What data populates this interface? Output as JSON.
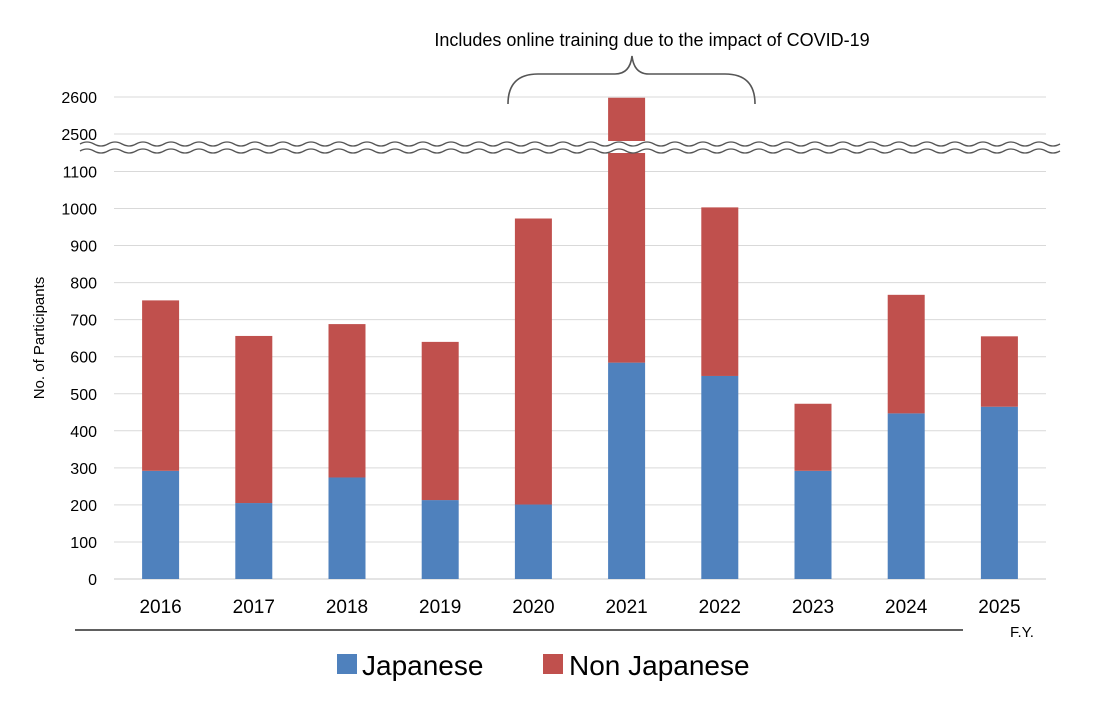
{
  "chart_data": {
    "type": "bar",
    "stacked": true,
    "title": "",
    "annotation": "Includes online training due to the impact of COVID-19",
    "xlabel": "F.Y.",
    "ylabel": "No. of Participants",
    "categories": [
      "2016",
      "2017",
      "2018",
      "2019",
      "2020",
      "2021",
      "2022",
      "2023",
      "2024",
      "2025"
    ],
    "series": [
      {
        "name": "Japanese",
        "values": [
          292,
          205,
          274,
          213,
          201,
          584,
          548,
          292,
          447,
          465
        ],
        "color": "#4F81BD"
      },
      {
        "name": "Non Japanese",
        "values": [
          460,
          451,
          414,
          427,
          772,
          2014,
          455,
          181,
          320,
          190
        ],
        "color": "#C0504D"
      }
    ],
    "y_ticks_lower": [
      "0",
      "100",
      "200",
      "300",
      "400",
      "500",
      "600",
      "700",
      "800",
      "900",
      "1000",
      "1100"
    ],
    "y_ticks_upper": [
      "2500",
      "2600"
    ],
    "ylim_lower": [
      0,
      1150
    ],
    "ylim_upper": [
      2490,
      2600
    ],
    "axis_break": true,
    "grid": true,
    "legend_position": "bottom"
  }
}
